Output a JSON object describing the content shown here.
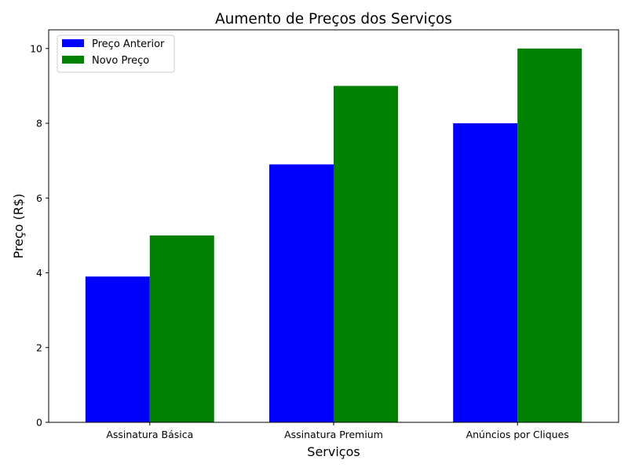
{
  "chart_data": {
    "type": "bar",
    "title": "Aumento de Preços dos Serviços",
    "xlabel": "Serviços",
    "ylabel": "Preço (R$)",
    "categories": [
      "Assinatura Básica",
      "Assinatura Premium",
      "Anúncios por Cliques"
    ],
    "series": [
      {
        "name": "Preço Anterior",
        "values": [
          3.9,
          6.9,
          8.0
        ],
        "color": "#0000ff"
      },
      {
        "name": "Novo Preço",
        "values": [
          5.0,
          9.0,
          10.0
        ],
        "color": "#008000"
      }
    ],
    "ylim": [
      0,
      10.5
    ],
    "yticks": [
      0,
      2,
      4,
      6,
      8,
      10
    ],
    "grid": false,
    "legend_position": "top-left"
  }
}
